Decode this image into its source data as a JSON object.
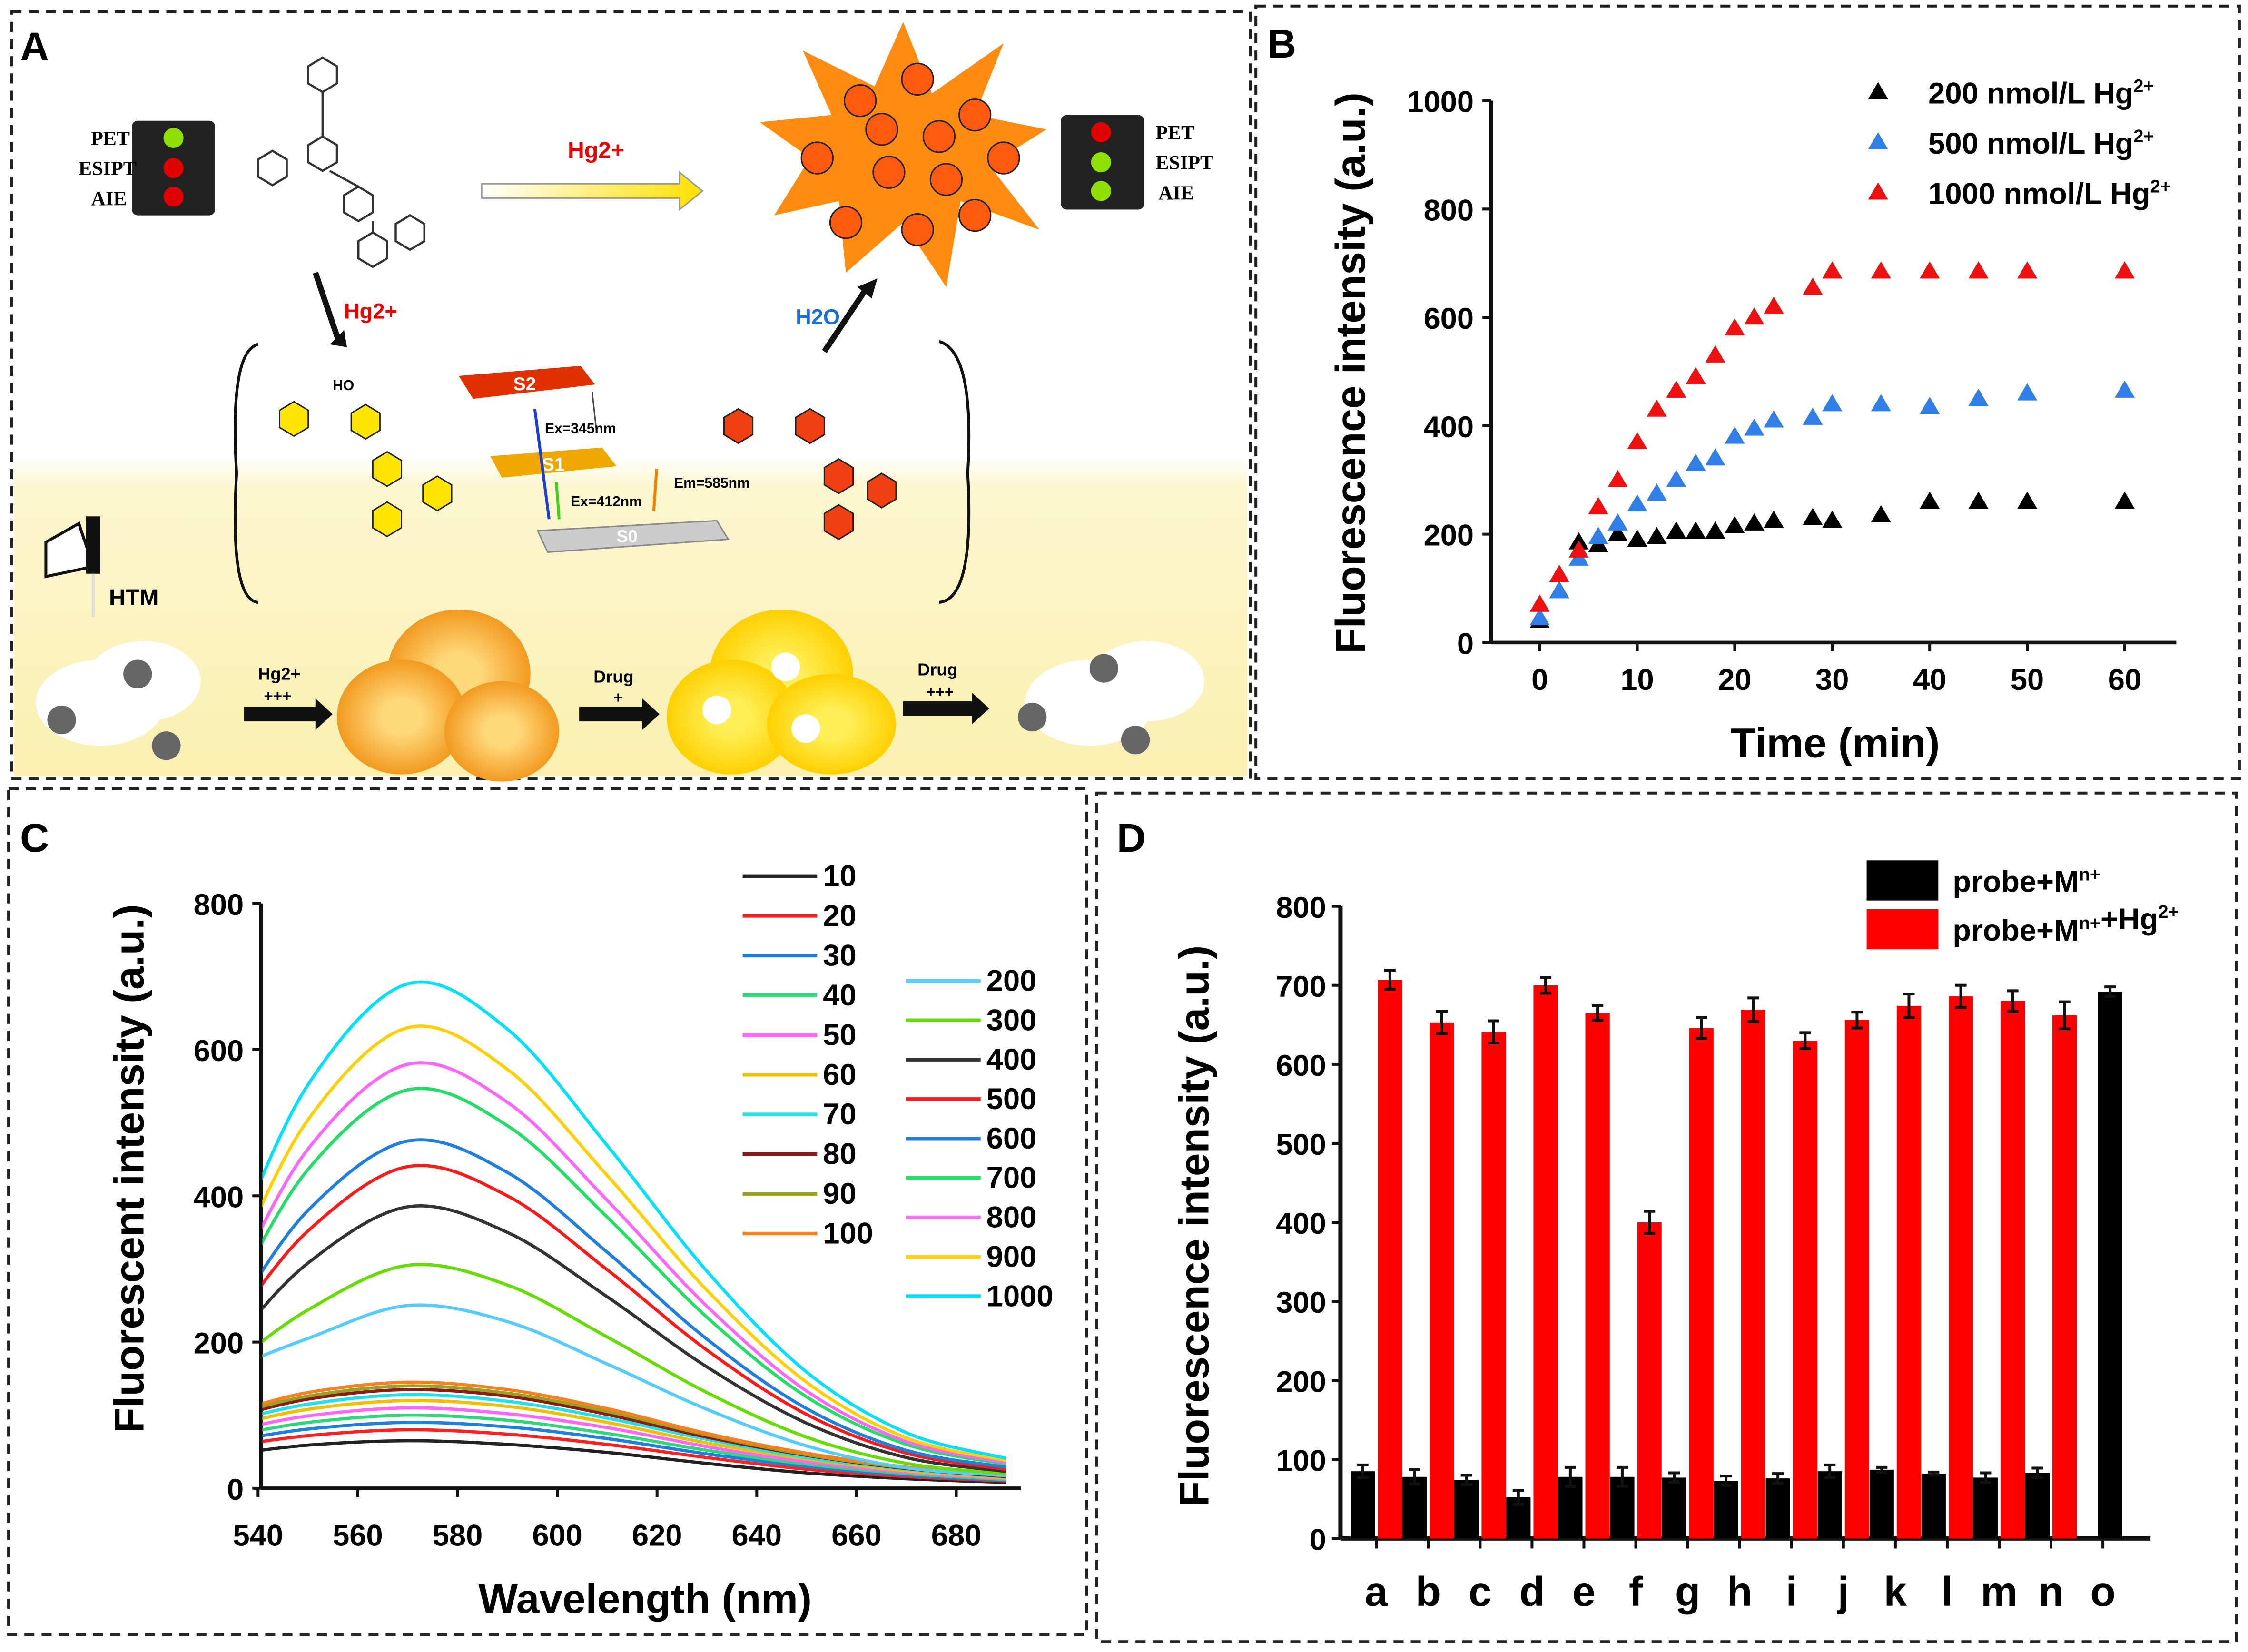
{
  "panels": {
    "A": {
      "label": "A",
      "left_light_labels": [
        "PET",
        "ESIPT",
        "AIE"
      ],
      "right_light_labels": [
        "PET",
        "ESIPT",
        "AIE"
      ],
      "left_light_colors": [
        "#8fe000",
        "#e00000",
        "#e00000"
      ],
      "right_light_colors": [
        "#e00000",
        "#8fe000",
        "#8fe000"
      ],
      "hg_top": "Hg2+",
      "hg_down": "Hg2+",
      "h2o": "H2O",
      "s2": "S2",
      "s1": "S1",
      "s0": "S0",
      "ex1": "Ex=345nm",
      "ex2": "Ex=412nm",
      "em": "Em=585nm",
      "ho": "HO",
      "htm": "HTM",
      "step1": {
        "label": "Hg2+",
        "level": "+++"
      },
      "step2": {
        "label": "Drug",
        "level": "+"
      },
      "step3": {
        "label": "Drug",
        "level": "+++"
      }
    }
  },
  "chart_data": [
    {
      "panel": "B",
      "type": "scatter",
      "xlabel": "Time (min)",
      "ylabel": "Fluorescence intensity (a.u.)",
      "xlim": [
        -4,
        65
      ],
      "ylim": [
        0,
        1000
      ],
      "xticks": [
        0,
        10,
        20,
        30,
        40,
        50,
        60
      ],
      "yticks": [
        0,
        200,
        400,
        600,
        800,
        1000
      ],
      "legend_position": "top-right",
      "x": [
        0,
        2,
        4,
        6,
        8,
        10,
        12,
        14,
        16,
        18,
        20,
        22,
        24,
        28,
        30,
        35,
        40,
        45,
        50,
        60
      ],
      "series": [
        {
          "name": "200 nmol/L Hg2+",
          "color": "#000000",
          "values": [
            40,
            95,
            185,
            180,
            200,
            190,
            195,
            205,
            205,
            205,
            215,
            220,
            225,
            230,
            225,
            235,
            260,
            260,
            260,
            260
          ]
        },
        {
          "name": "500 nmol/L Hg2+",
          "color": "#2f7fe6",
          "values": [
            45,
            95,
            155,
            195,
            220,
            255,
            275,
            300,
            330,
            340,
            380,
            395,
            410,
            415,
            440,
            440,
            435,
            450,
            460,
            465
          ]
        },
        {
          "name": "1000 nmol/L Hg2+",
          "color": "#ee1111",
          "values": [
            70,
            125,
            170,
            250,
            300,
            370,
            430,
            465,
            490,
            530,
            580,
            600,
            620,
            655,
            685,
            685,
            685,
            685,
            685,
            685
          ]
        }
      ]
    },
    {
      "panel": "C",
      "type": "line",
      "xlabel": "Wavelength (nm)",
      "ylabel": "Fluorescent intensity (a.u.)",
      "xlim": [
        535,
        693
      ],
      "ylim": [
        0,
        800
      ],
      "xticks": [
        540,
        560,
        580,
        600,
        620,
        640,
        660,
        680
      ],
      "yticks": [
        0,
        200,
        400,
        600,
        800
      ],
      "legend_position": "right",
      "x": [
        535,
        550,
        570,
        590,
        610,
        630,
        650,
        670,
        690
      ],
      "series": [
        {
          "name": "10",
          "color": "#222222",
          "values": [
            47,
            59,
            65,
            60,
            49,
            34,
            21,
            13,
            8
          ]
        },
        {
          "name": "20",
          "color": "#ff2020",
          "values": [
            58,
            72,
            80,
            74,
            60,
            42,
            26,
            16,
            10
          ]
        },
        {
          "name": "30",
          "color": "#1e7fe0",
          "values": [
            65,
            81,
            90,
            84,
            68,
            47,
            30,
            18,
            11
          ]
        },
        {
          "name": "40",
          "color": "#2ed87a",
          "values": [
            72,
            90,
            100,
            93,
            75,
            52,
            33,
            20,
            12
          ]
        },
        {
          "name": "50",
          "color": "#ff66ff",
          "values": [
            79,
            99,
            110,
            102,
            83,
            57,
            36,
            22,
            13
          ]
        },
        {
          "name": "60",
          "color": "#f0c000",
          "values": [
            86,
            108,
            120,
            112,
            90,
            62,
            40,
            24,
            14
          ]
        },
        {
          "name": "70",
          "color": "#22e0e8",
          "values": [
            92,
            115,
            128,
            119,
            96,
            67,
            42,
            26,
            15
          ]
        },
        {
          "name": "80",
          "color": "#8b1a1a",
          "values": [
            97,
            122,
            135,
            126,
            101,
            70,
            45,
            27,
            16
          ]
        },
        {
          "name": "90",
          "color": "#9aa020",
          "values": [
            101,
            126,
            140,
            130,
            105,
            73,
            46,
            28,
            17
          ]
        },
        {
          "name": "100",
          "color": "#ff7f20",
          "values": [
            104,
            131,
            145,
            135,
            109,
            75,
            48,
            29,
            17
          ]
        },
        {
          "name": "200",
          "color": "#55ccff",
          "values": [
            165,
            205,
            250,
            228,
            170,
            108,
            58,
            28,
            18
          ]
        },
        {
          "name": "300",
          "color": "#66dd00",
          "values": [
            170,
            244,
            305,
            278,
            207,
            131,
            70,
            34,
            20
          ]
        },
        {
          "name": "400",
          "color": "#333333",
          "values": [
            200,
            308,
            385,
            350,
            262,
            166,
            89,
            42,
            23
          ]
        },
        {
          "name": "500",
          "color": "#ff1a1a",
          "values": [
            225,
            352,
            440,
            400,
            299,
            189,
            101,
            48,
            26
          ]
        },
        {
          "name": "600",
          "color": "#1e7fe0",
          "values": [
            235,
            380,
            475,
            432,
            323,
            204,
            109,
            52,
            29
          ]
        },
        {
          "name": "700",
          "color": "#22dd66",
          "values": [
            262,
            436,
            545,
            496,
            371,
            234,
            125,
            60,
            33
          ]
        },
        {
          "name": "800",
          "color": "#ff66ff",
          "values": [
            278,
            464,
            580,
            528,
            394,
            249,
            133,
            64,
            35
          ]
        },
        {
          "name": "900",
          "color": "#ffd000",
          "values": [
            302,
            504,
            630,
            573,
            428,
            271,
            145,
            69,
            38
          ]
        },
        {
          "name": "1000",
          "color": "#00e0ff",
          "values": [
            331,
            552,
            690,
            628,
            469,
            297,
            159,
            76,
            41
          ]
        }
      ]
    },
    {
      "panel": "D",
      "type": "bar",
      "xlabel": "",
      "ylabel": "Fluorescence intensity (a.u.)",
      "ylim": [
        0,
        800
      ],
      "yticks": [
        0,
        100,
        200,
        300,
        400,
        500,
        600,
        700,
        800
      ],
      "legend_position": "top-right",
      "categories": [
        "a",
        "b",
        "c",
        "d",
        "e",
        "f",
        "g",
        "h",
        "i",
        "j",
        "k",
        "l",
        "m",
        "n",
        "o"
      ],
      "series": [
        {
          "name": "probe+Mn+",
          "color": "#000000",
          "values": [
            85,
            78,
            74,
            52,
            78,
            78,
            77,
            73,
            76,
            85,
            87,
            82,
            77,
            83,
            692
          ],
          "errors": [
            8,
            9,
            6,
            9,
            12,
            12,
            6,
            6,
            6,
            8,
            3,
            2,
            6,
            6,
            6
          ]
        },
        {
          "name": "probe+Mn++Hg2+",
          "color": "#ff0000",
          "values": [
            707,
            653,
            641,
            700,
            665,
            400,
            646,
            669,
            630,
            656,
            674,
            686,
            680,
            662,
            null
          ],
          "errors": [
            12,
            14,
            14,
            10,
            9,
            14,
            13,
            15,
            10,
            10,
            15,
            14,
            13,
            17,
            null
          ]
        }
      ]
    }
  ],
  "panel_labels": [
    "A",
    "B",
    "C",
    "D"
  ]
}
